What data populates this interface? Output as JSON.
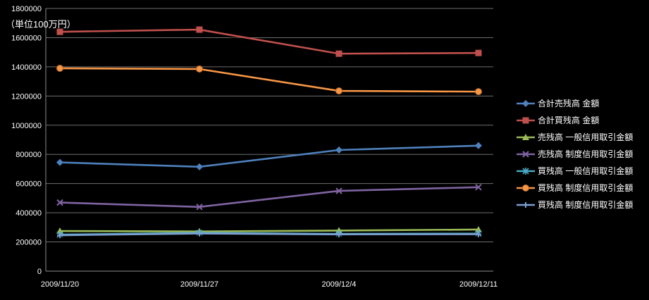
{
  "unit_label": "（単位100万円）",
  "chart_data": {
    "type": "line",
    "title": "",
    "xlabel": "",
    "ylabel": "",
    "categories": [
      "2009/11/20",
      "2009/11/27",
      "2009/12/4",
      "2009/12/11"
    ],
    "ylim": [
      0,
      1800000
    ],
    "ytick_step": 200000,
    "yticks": [
      0,
      200000,
      400000,
      600000,
      800000,
      1000000,
      1200000,
      1400000,
      1600000,
      1800000
    ],
    "grid": true,
    "legend_position": "right",
    "background": "#000000",
    "gridline_color": "#6e6e6e",
    "axis_color": "#8c8c8c",
    "series": [
      {
        "name": "合計売残高 金額",
        "color": "#4F81BD",
        "marker": "diamond",
        "values": [
          745000,
          715000,
          830000,
          860000
        ]
      },
      {
        "name": "合計買残高 金額",
        "color": "#C0504D",
        "marker": "square",
        "values": [
          1640000,
          1655000,
          1490000,
          1495000
        ]
      },
      {
        "name": "売残高 一般信用取引金額",
        "color": "#9BBB59",
        "marker": "triangle",
        "values": [
          275000,
          272000,
          278000,
          285000
        ]
      },
      {
        "name": "売残高 制度信用取引金額",
        "color": "#8064A2",
        "marker": "x",
        "values": [
          470000,
          440000,
          550000,
          575000
        ]
      },
      {
        "name": "買残高 一般信用取引金額",
        "color": "#4BACC6",
        "marker": "asterisk",
        "values": [
          250000,
          262000,
          255000,
          257000
        ]
      },
      {
        "name": "買残高 制度信用取引金額",
        "color": "#F79646",
        "marker": "circle",
        "values": [
          1390000,
          1385000,
          1235000,
          1230000
        ]
      },
      {
        "name": "買残高 制度信用取引金額",
        "color": "#7C9FD1",
        "marker": "plus",
        "values": [
          246000,
          258000,
          252000,
          253000
        ]
      }
    ]
  }
}
